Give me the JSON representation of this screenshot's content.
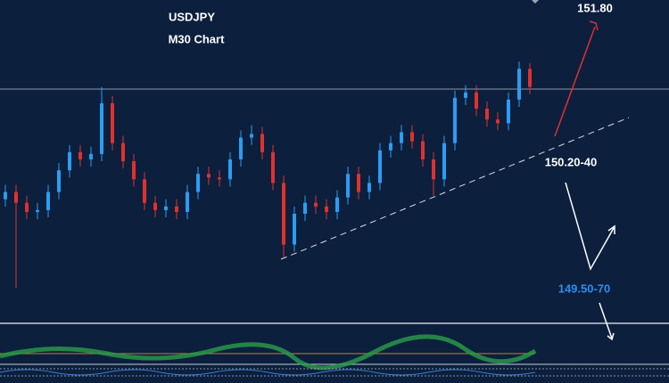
{
  "chart_data": {
    "type": "candlestick",
    "title": "USDJPY",
    "subtitle": "M30 Chart",
    "annotations": [
      "151.80",
      "150.20-40",
      "149.50-70"
    ],
    "up_color": "#2a9df4",
    "down_color": "#e0312f",
    "ylim": [
      149.42,
      151.2
    ],
    "open": [
      150.1,
      150.14,
      150.08,
      150.03,
      150.04,
      150.14,
      150.26,
      150.36,
      150.32,
      150.35,
      150.63,
      150.41,
      150.31,
      150.21,
      150.08,
      150.04,
      150.06,
      150.03,
      150.14,
      150.24,
      150.22,
      150.21,
      150.32,
      150.44,
      150.46,
      150.36,
      150.19,
      149.85,
      150.02,
      150.08,
      150.06,
      150.03,
      150.11,
      150.24,
      150.14,
      150.19,
      150.37,
      150.41,
      150.47,
      150.42,
      150.32,
      150.21,
      150.41,
      150.66,
      150.69,
      150.6,
      150.54,
      150.52,
      150.65,
      150.82
    ],
    "high": [
      150.18,
      150.18,
      150.12,
      150.08,
      150.18,
      150.3,
      150.4,
      150.4,
      150.39,
      150.72,
      150.67,
      150.45,
      150.35,
      150.25,
      150.12,
      150.1,
      150.1,
      150.18,
      150.28,
      150.28,
      150.26,
      150.36,
      150.48,
      150.51,
      150.5,
      150.4,
      150.23,
      150.06,
      150.12,
      150.12,
      150.1,
      150.15,
      150.28,
      150.28,
      150.23,
      150.41,
      150.45,
      150.51,
      150.51,
      150.46,
      150.36,
      150.45,
      150.7,
      150.73,
      150.73,
      150.64,
      150.58,
      150.69,
      150.86,
      150.85
    ],
    "low": [
      150.06,
      149.61,
      149.99,
      149.99,
      150.0,
      150.1,
      150.22,
      150.28,
      150.28,
      150.31,
      150.37,
      150.27,
      150.17,
      150.04,
      150.0,
      150.0,
      149.99,
      149.99,
      150.1,
      150.18,
      150.17,
      150.17,
      150.28,
      150.4,
      150.32,
      150.15,
      149.78,
      149.81,
      149.98,
      150.02,
      149.99,
      149.99,
      150.07,
      150.1,
      150.1,
      150.15,
      150.33,
      150.37,
      150.38,
      150.28,
      150.12,
      150.17,
      150.37,
      150.62,
      150.56,
      150.5,
      150.48,
      150.48,
      150.61,
      150.68
    ],
    "close": [
      150.14,
      150.08,
      150.03,
      150.04,
      150.14,
      150.26,
      150.36,
      150.32,
      150.35,
      150.63,
      150.41,
      150.31,
      150.21,
      150.08,
      150.04,
      150.06,
      150.03,
      150.14,
      150.24,
      150.22,
      150.21,
      150.32,
      150.44,
      150.46,
      150.36,
      150.19,
      149.85,
      150.02,
      150.08,
      150.06,
      150.03,
      150.11,
      150.24,
      150.14,
      150.19,
      150.37,
      150.41,
      150.47,
      150.42,
      150.32,
      150.21,
      150.41,
      150.66,
      150.69,
      150.6,
      150.54,
      150.52,
      150.65,
      150.82,
      150.72
    ]
  }
}
